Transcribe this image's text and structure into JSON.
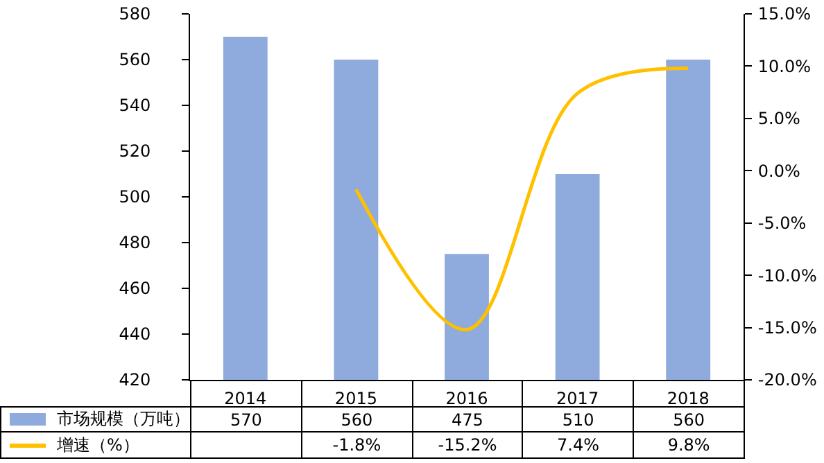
{
  "chart_data": {
    "type": "bar",
    "categories": [
      "2014",
      "2015",
      "2016",
      "2017",
      "2018"
    ],
    "series": [
      {
        "name": "市场规模（万吨）",
        "color": "#8faadc",
        "values": [
          570,
          560,
          475,
          510,
          560
        ],
        "value_labels": [
          "570",
          "560",
          "475",
          "510",
          "560"
        ]
      },
      {
        "name": "增速（%）",
        "type": "line",
        "axis": "y2",
        "color": "#ffc000",
        "values": [
          null,
          -1.8,
          -15.2,
          7.4,
          9.8
        ],
        "value_labels": [
          null,
          "-1.8%",
          "-15.2%",
          "7.4%",
          "9.8%"
        ]
      }
    ],
    "ylim": [
      420,
      580
    ],
    "yticks": [
      420,
      440,
      460,
      480,
      500,
      520,
      540,
      560,
      580
    ],
    "y2lim": [
      -20,
      15
    ],
    "y2ticks": [
      {
        "value": -20,
        "label": "-20.0%"
      },
      {
        "value": -15,
        "label": "-15.0%"
      },
      {
        "value": -10,
        "label": "-10.0%"
      },
      {
        "value": -5,
        "label": "-5.0%"
      },
      {
        "value": 0,
        "label": "0.0%"
      },
      {
        "value": 5,
        "label": "5.0%"
      },
      {
        "value": 10,
        "label": "10.0%"
      },
      {
        "value": 15,
        "label": "15.0%"
      }
    ],
    "grid": false,
    "legend": "bottom left",
    "marker": "none",
    "line_style": "solid"
  }
}
